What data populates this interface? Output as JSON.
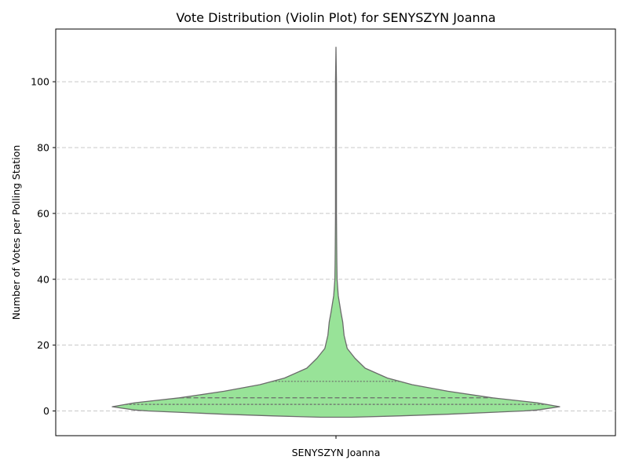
{
  "chart_data": {
    "type": "violin",
    "title": "Vote Distribution (Violin Plot) for SENYSZYN Joanna",
    "xlabel": "",
    "ylabel": "Number of Votes per Polling Station",
    "categories": [
      "SENYSZYN Joanna"
    ],
    "ylim": [
      -7.5,
      116
    ],
    "yticks": [
      0,
      20,
      40,
      60,
      80,
      100
    ],
    "grid": "y-dashed",
    "colors": {
      "fill": "#98e398",
      "edge": "#6b6b6b",
      "grid": "#c8c8c8"
    },
    "quartiles": {
      "q1": 2,
      "median": 4,
      "q3": 9
    },
    "density_profile": {
      "y": [
        -1.9,
        -1.5,
        -1,
        0,
        0.3,
        1.3,
        2.5,
        4,
        6,
        8,
        10,
        13,
        16,
        19,
        23,
        27,
        30,
        35,
        40,
        45,
        50,
        60,
        80,
        100,
        110.5
      ],
      "half_width": [
        0.07,
        0.28,
        0.5,
        0.84,
        0.9,
        1.0,
        0.9,
        0.7,
        0.5,
        0.34,
        0.23,
        0.13,
        0.085,
        0.05,
        0.036,
        0.03,
        0.022,
        0.01,
        0.005,
        0.004,
        0.003,
        0.002,
        0.002,
        0.002,
        0.0
      ]
    }
  }
}
